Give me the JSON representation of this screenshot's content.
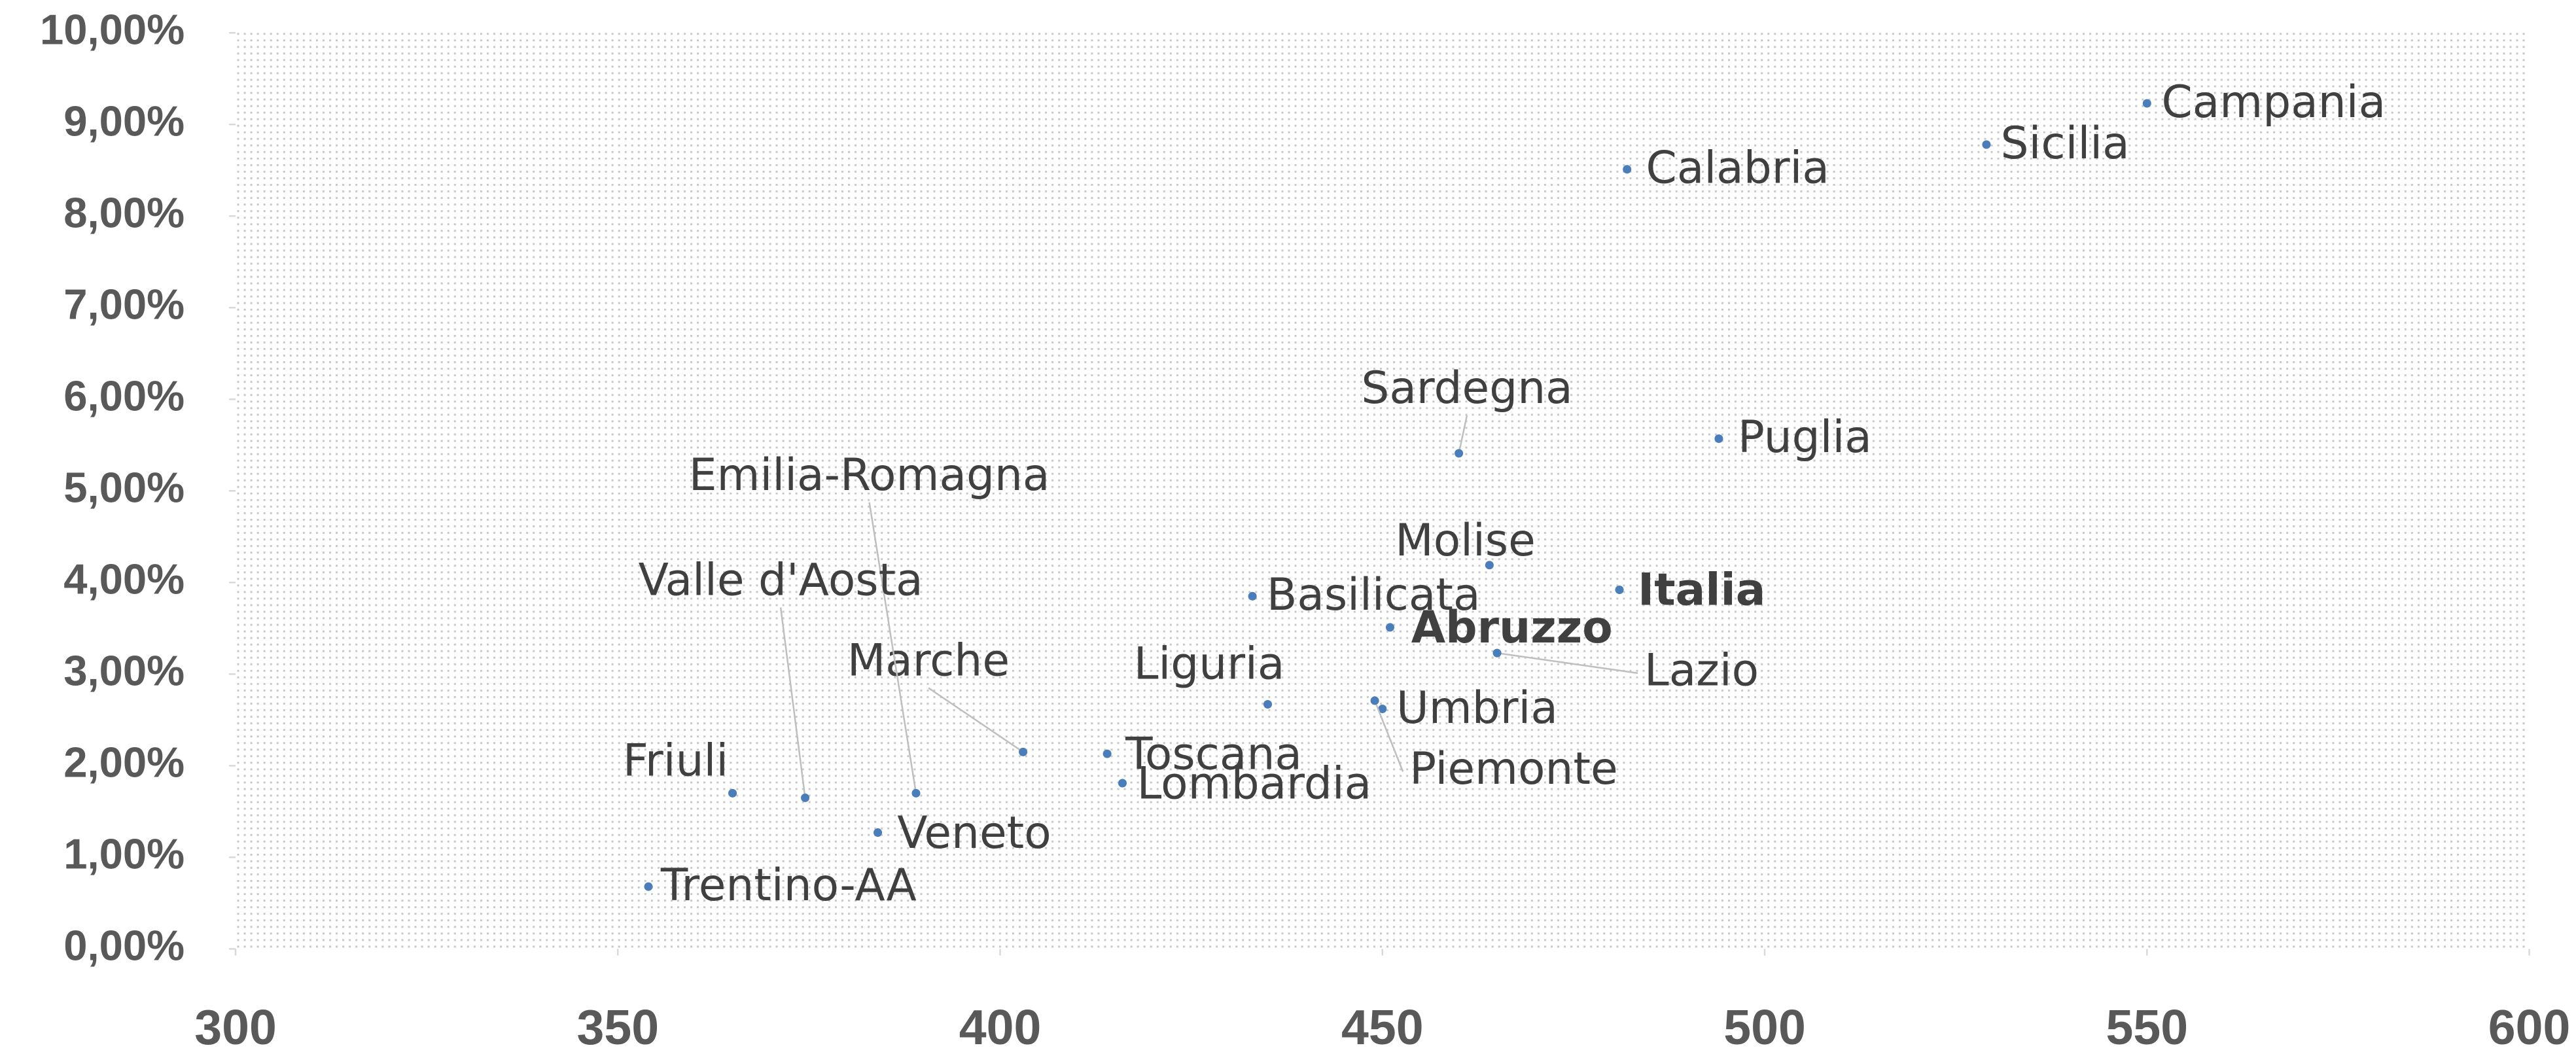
{
  "chart_data": {
    "type": "scatter",
    "labels": [
      "Campania",
      "Sicilia",
      "Calabria",
      "Sardegna",
      "Puglia",
      "Molise",
      "Italia",
      "Basilicata",
      "Abruzzo",
      "Lazio",
      "Liguria",
      "Umbria",
      "Piemonte",
      "Marche",
      "Toscana",
      "Lombardia",
      "Emilia-Romagna",
      "Valle d'Aosta",
      "Friuli",
      "Veneto",
      "Trentino-AA"
    ],
    "x": [
      550,
      529,
      482,
      460,
      494,
      464,
      481,
      433,
      451,
      465,
      435,
      450,
      449,
      403,
      414,
      416,
      389,
      374.5,
      365,
      384,
      354
    ],
    "values": [
      9.23,
      8.78,
      8.51,
      5.41,
      5.57,
      4.19,
      3.92,
      3.85,
      3.51,
      3.23,
      2.67,
      2.62,
      2.71,
      2.15,
      2.13,
      1.81,
      1.7,
      1.65,
      1.7,
      1.27,
      0.68
    ],
    "bold": [
      false,
      false,
      false,
      false,
      false,
      false,
      true,
      false,
      true,
      false,
      false,
      false,
      false,
      false,
      false,
      false,
      false,
      false,
      false,
      false,
      false
    ],
    "color": "#4a7ebb",
    "xlim": [
      300,
      600
    ],
    "xticks": [
      300,
      350,
      400,
      450,
      500,
      550,
      600
    ],
    "ylim": [
      0,
      10
    ],
    "yticks": [
      {
        "value": 0,
        "label": "0,00%"
      },
      {
        "value": 1,
        "label": "1,00%"
      },
      {
        "value": 2,
        "label": "2,00%"
      },
      {
        "value": 3,
        "label": "3,00%"
      },
      {
        "value": 4,
        "label": "4,00%"
      },
      {
        "value": 5,
        "label": "5,00%"
      },
      {
        "value": 6,
        "label": "6,00%"
      },
      {
        "value": 7,
        "label": "7,00%"
      },
      {
        "value": 8,
        "label": "8,00%"
      },
      {
        "value": 9,
        "label": "9,00%"
      },
      {
        "value": 10,
        "label": "10,00%"
      }
    ]
  }
}
